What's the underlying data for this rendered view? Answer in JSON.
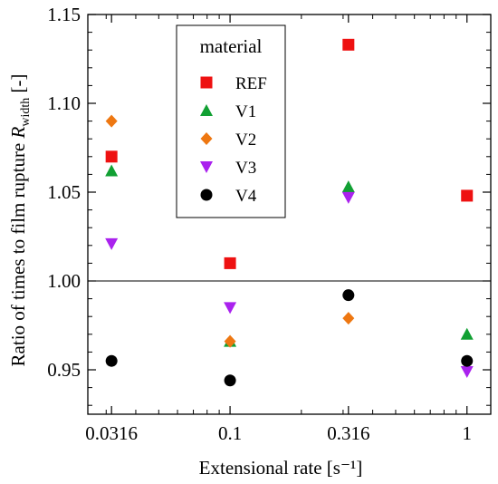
{
  "chart_data": {
    "type": "scatter",
    "xscale": "log",
    "xlabel": "Extensional rate [s⁻¹]",
    "ylabel": "Ratio of times to film rupture ",
    "ylabel_symbol": "R",
    "ylabel_sub": "width",
    "ylabel_unit": " [-]",
    "xlim": [
      0.0251,
      1.26
    ],
    "ylim": [
      0.925,
      1.15
    ],
    "xticks": [
      0.0316,
      0.1,
      0.316,
      1
    ],
    "xtick_labels": [
      "0.0316",
      "0.1",
      "0.316",
      "1"
    ],
    "yticks": [
      0.95,
      1.0,
      1.05,
      1.1,
      1.15
    ],
    "ytick_labels": [
      "0.95",
      "1.00",
      "1.05",
      "1.10",
      "1.15"
    ],
    "reference_line": 1.0,
    "grid": false,
    "legend": {
      "title": "material",
      "position": "top-center"
    },
    "series": [
      {
        "name": "REF",
        "marker": "square",
        "color": "#ee1111",
        "x": [
          0.0316,
          0.1,
          0.316,
          1
        ],
        "y": [
          1.07,
          1.01,
          1.133,
          1.048
        ]
      },
      {
        "name": "V1",
        "marker": "triangle-up",
        "color": "#11a033",
        "x": [
          0.0316,
          0.1,
          0.316,
          1
        ],
        "y": [
          1.062,
          0.966,
          1.053,
          0.97
        ]
      },
      {
        "name": "V2",
        "marker": "diamond",
        "color": "#ee7711",
        "x": [
          0.0316,
          0.1,
          0.316
        ],
        "y": [
          1.09,
          0.966,
          0.979
        ]
      },
      {
        "name": "V3",
        "marker": "triangle-down",
        "color": "#aa22ee",
        "x": [
          0.0316,
          0.1,
          0.316,
          1
        ],
        "y": [
          1.021,
          0.985,
          1.047,
          0.949
        ]
      },
      {
        "name": "V4",
        "marker": "circle",
        "color": "#000000",
        "x": [
          0.0316,
          0.1,
          0.316,
          1
        ],
        "y": [
          0.955,
          0.944,
          0.992,
          0.955
        ]
      }
    ]
  }
}
